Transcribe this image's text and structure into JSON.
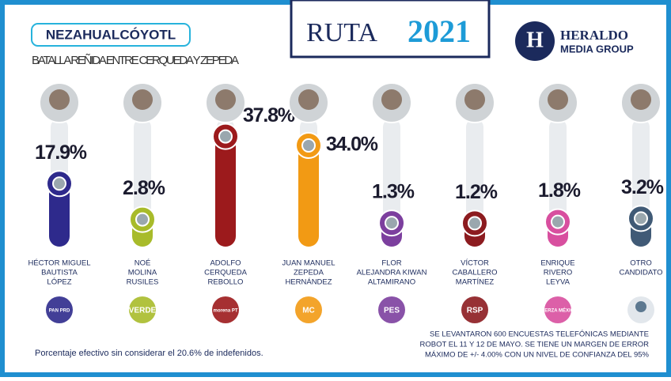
{
  "header": {
    "brand": "RUTA",
    "year": "2021",
    "publisher": "HERALDO",
    "publisher_sub": "MEDIA GROUP"
  },
  "chart_data": {
    "type": "bar",
    "title": "NEZAHUALCÓYOTL",
    "subtitle": "BATALLA REÑIDA ENTRE CERQUEDA Y ZEPEDA",
    "categories": [
      [
        "HÉCTOR MIGUEL",
        "BAUTISTA",
        "LÓPEZ"
      ],
      [
        "NOÉ",
        "MOLINA",
        "RUSILES"
      ],
      [
        "ADOLFO",
        "CERQUEDA",
        "REBOLLO"
      ],
      [
        "JUAN MANUEL",
        "ZEPEDA",
        "HERNÁNDEZ"
      ],
      [
        "FLOR",
        "ALEJANDRA KIWAN",
        "ALTAMIRANO"
      ],
      [
        "VÍCTOR",
        "CABALLERO",
        "MARTÍNEZ"
      ],
      [
        "ENRIQUE",
        "RIVERO",
        "LEYVA"
      ],
      [
        "OTRO",
        "CANDIDATO"
      ]
    ],
    "values": [
      17.9,
      2.8,
      37.8,
      34.0,
      1.3,
      1.2,
      1.8,
      3.2
    ],
    "value_labels": [
      "17.9%",
      "2.8%",
      "37.8%",
      "34.0%",
      "1.3%",
      "1.2%",
      "1.8%",
      "3.2%"
    ],
    "colors": [
      "#2e2a8c",
      "#a8bb2a",
      "#9c1a1c",
      "#f29a14",
      "#7c3f9e",
      "#8c1b1f",
      "#d84f9f",
      "#405a76"
    ],
    "parties": [
      "PAN PRD",
      "VERDE",
      "morena PT",
      "MC",
      "PES",
      "RSP",
      "FUERZA MÉXICO",
      null
    ]
  },
  "notes": {
    "footnote": "Porcentaje efectivo sin considerar el 20.6% de indefenidos.",
    "method": [
      "SE LEVANTARON 600 ENCUESTAS TELEFÓNICAS MEDIANTE",
      "ROBOT EL 11 Y 12 DE MAYO. SE TIENE UN MARGEN DE ERROR",
      "MÁXIMO DE +/- 4.00% CON UN NIVEL DE CONFIANZA DEL 95%"
    ]
  }
}
